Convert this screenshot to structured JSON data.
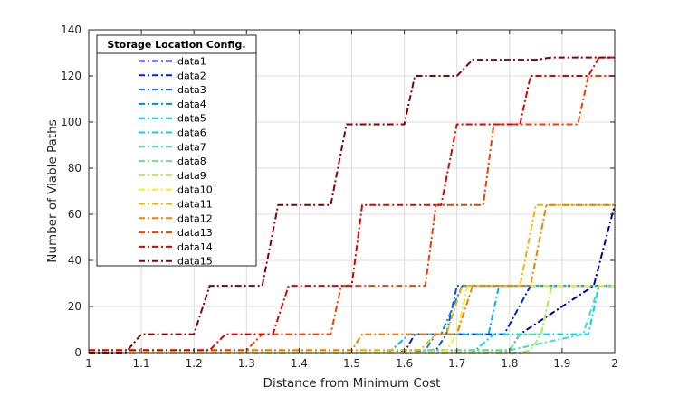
{
  "chart_data": {
    "type": "line",
    "title": "",
    "xlabel": "Distance from Minimum Cost",
    "ylabel": "Number of Viable Paths",
    "xlim": [
      1,
      2
    ],
    "ylim": [
      0,
      140
    ],
    "xticks": [
      1,
      1.1,
      1.2,
      1.3,
      1.4,
      1.5,
      1.6,
      1.7,
      1.8,
      1.9,
      2
    ],
    "xtick_labels": [
      "1",
      "1.1",
      "1.2",
      "1.3",
      "1.4",
      "1.5",
      "1.6",
      "1.7",
      "1.8",
      "1.9",
      "2"
    ],
    "yticks": [
      0,
      20,
      40,
      60,
      80,
      100,
      120,
      140
    ],
    "ytick_labels": [
      "0",
      "20",
      "40",
      "60",
      "80",
      "100",
      "120",
      "140"
    ],
    "grid": true,
    "line_style": "dash-dot",
    "legend": {
      "title": "Storage Location Config.",
      "placement": "top-left"
    },
    "series": [
      {
        "name": "data1",
        "color": "#0000a8",
        "x": [
          1,
          1.58,
          1.6,
          1.8,
          1.82,
          1.96,
          2.0
        ],
        "y": [
          0,
          0,
          1,
          1,
          8,
          29,
          64
        ]
      },
      {
        "name": "data2",
        "color": "#0022d4",
        "x": [
          1,
          1.6,
          1.62,
          1.79,
          1.84,
          2.0
        ],
        "y": [
          0,
          0,
          8,
          8,
          29,
          29
        ]
      },
      {
        "name": "data3",
        "color": "#0055e8",
        "x": [
          1,
          1.62,
          1.64,
          1.66,
          1.68,
          1.7,
          2.0
        ],
        "y": [
          0,
          0,
          1,
          1,
          8,
          29,
          29
        ]
      },
      {
        "name": "data4",
        "color": "#0088ee",
        "x": [
          1,
          1.64,
          1.66,
          1.67,
          1.71,
          2.0
        ],
        "y": [
          1,
          1,
          8,
          8,
          29,
          29
        ]
      },
      {
        "name": "data5",
        "color": "#00b4f0",
        "x": [
          1,
          1.57,
          1.61,
          1.76,
          1.78,
          2.0
        ],
        "y": [
          0,
          0,
          8,
          8,
          29,
          29
        ]
      },
      {
        "name": "data6",
        "color": "#00d8e8",
        "x": [
          1,
          1.73,
          1.77,
          1.95,
          1.97,
          2.0
        ],
        "y": [
          0,
          0,
          8,
          8,
          29,
          29
        ]
      },
      {
        "name": "data7",
        "color": "#40e0c0",
        "x": [
          1,
          1.78,
          1.8,
          1.94,
          1.97,
          2.0
        ],
        "y": [
          0,
          0,
          1,
          8,
          29,
          29
        ]
      },
      {
        "name": "data8",
        "color": "#70e080",
        "x": [
          1,
          1.8,
          1.82,
          1.86,
          1.88,
          1.98,
          2.0
        ],
        "y": [
          1,
          1,
          8,
          8,
          29,
          29,
          29
        ]
      },
      {
        "name": "data9",
        "color": "#b0f050",
        "x": [
          1,
          1.82,
          1.84,
          1.86,
          1.88,
          1.98,
          2.0
        ],
        "y": [
          0,
          0,
          1,
          8,
          29,
          29,
          29
        ]
      },
      {
        "name": "data10",
        "color": "#f0f020",
        "x": [
          1,
          1.66,
          1.68,
          1.7,
          1.72,
          2.0
        ],
        "y": [
          0,
          0,
          1,
          8,
          29,
          29
        ]
      },
      {
        "name": "data11",
        "color": "#f0b400",
        "x": [
          1,
          1.63,
          1.66,
          1.68,
          1.71,
          1.82,
          1.85,
          2.0
        ],
        "y": [
          1,
          1,
          8,
          8,
          29,
          29,
          64,
          64
        ]
      },
      {
        "name": "data12",
        "color": "#f08000",
        "x": [
          1,
          1.5,
          1.52,
          1.7,
          1.73,
          1.84,
          1.87,
          2.0
        ],
        "y": [
          1,
          1,
          8,
          8,
          29,
          29,
          64,
          64
        ]
      },
      {
        "name": "data13",
        "color": "#f04000",
        "x": [
          1,
          1.3,
          1.33,
          1.46,
          1.48,
          1.64,
          1.66,
          1.75,
          1.77,
          1.93,
          1.95,
          2.0
        ],
        "y": [
          1,
          1,
          8,
          8,
          29,
          29,
          64,
          64,
          99,
          99,
          120,
          120
        ]
      },
      {
        "name": "data14",
        "color": "#e00000",
        "x": [
          1,
          1.23,
          1.26,
          1.35,
          1.38,
          1.5,
          1.52,
          1.67,
          1.7,
          1.82,
          1.84,
          1.95,
          1.97,
          2.0
        ],
        "y": [
          1,
          1,
          8,
          8,
          29,
          29,
          64,
          64,
          99,
          99,
          120,
          120,
          128,
          128
        ]
      },
      {
        "name": "data15",
        "color": "#8a0000",
        "x": [
          1,
          1.07,
          1.1,
          1.2,
          1.23,
          1.33,
          1.36,
          1.46,
          1.49,
          1.6,
          1.62,
          1.7,
          1.73,
          1.85,
          1.88,
          2.0
        ],
        "y": [
          0,
          0,
          8,
          8,
          29,
          29,
          64,
          64,
          99,
          99,
          120,
          120,
          127,
          127,
          128,
          128
        ]
      }
    ]
  }
}
